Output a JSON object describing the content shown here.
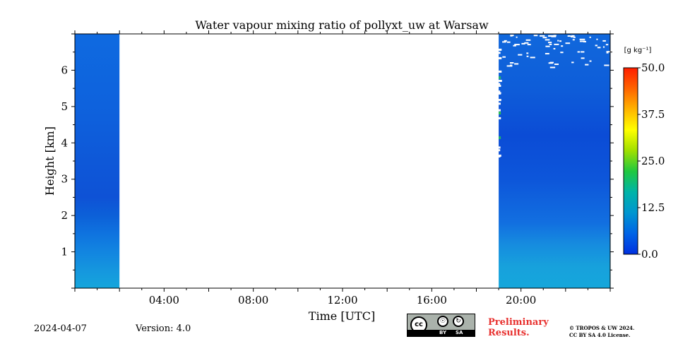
{
  "chart_data": {
    "type": "heatmap",
    "title": "Water vapour mixing ratio of pollyxt_uw at Warsaw",
    "xlabel": "Time [UTC]",
    "ylabel": "Height [km]",
    "x_range_hours": [
      0,
      24
    ],
    "y_range_km": [
      0,
      7
    ],
    "x_ticks": [
      {
        "hour": 4,
        "label": "04:00"
      },
      {
        "hour": 8,
        "label": "08:00"
      },
      {
        "hour": 12,
        "label": "12:00"
      },
      {
        "hour": 16,
        "label": "16:00"
      },
      {
        "hour": 20,
        "label": "20:00"
      }
    ],
    "y_ticks": [
      {
        "km": 1,
        "label": "1"
      },
      {
        "km": 2,
        "label": "2"
      },
      {
        "km": 3,
        "label": "3"
      },
      {
        "km": 4,
        "label": "4"
      },
      {
        "km": 5,
        "label": "5"
      },
      {
        "km": 6,
        "label": "6"
      }
    ],
    "colorbar": {
      "unit_label": "[g kg⁻¹]",
      "range": [
        0,
        50
      ],
      "ticks": [
        {
          "value": 0,
          "label": "0.0"
        },
        {
          "value": 12.5,
          "label": "12.5"
        },
        {
          "value": 25,
          "label": "25.0"
        },
        {
          "value": 37.5,
          "label": "37.5"
        },
        {
          "value": 50,
          "label": "50.0"
        }
      ],
      "colormap": [
        "#0030e0",
        "#0064e6",
        "#0096d0",
        "#00b4a8",
        "#20c840",
        "#a0e000",
        "#ffff00",
        "#ffb400",
        "#ff6400",
        "#ff1e00"
      ]
    },
    "data_segments": [
      {
        "start_hour": 0,
        "end_hour": 2,
        "profile": [
          {
            "km": 0.0,
            "color": "#15a6dc"
          },
          {
            "km": 0.5,
            "color": "#1596de"
          },
          {
            "km": 1.0,
            "color": "#1285e0"
          },
          {
            "km": 1.5,
            "color": "#0f73df"
          },
          {
            "km": 2.0,
            "color": "#0c60d8"
          },
          {
            "km": 2.5,
            "color": "#0e52d6"
          },
          {
            "km": 3.5,
            "color": "#0e58d8"
          },
          {
            "km": 5.0,
            "color": "#0e62dd"
          },
          {
            "km": 7.0,
            "color": "#0f6ae0"
          }
        ]
      },
      {
        "start_hour": 19,
        "end_hour": 24,
        "profile": [
          {
            "km": 0.0,
            "color": "#16a7db"
          },
          {
            "km": 0.6,
            "color": "#17a1dc"
          },
          {
            "km": 1.2,
            "color": "#168cdf"
          },
          {
            "km": 1.8,
            "color": "#126fe0"
          },
          {
            "km": 3.0,
            "color": "#0d56da"
          },
          {
            "km": 4.2,
            "color": "#0b4cd6"
          },
          {
            "km": 5.5,
            "color": "#0e5dd9"
          },
          {
            "km": 7.0,
            "color": "#1168dc"
          }
        ]
      }
    ]
  },
  "footer": {
    "date": "2024-04-07",
    "version": "Version: 4.0",
    "license_badge": {
      "icon": "cc-by-sa-icon",
      "by": "BY",
      "sa": "SA",
      "cc": "cc"
    },
    "preliminary": [
      "Preliminary",
      "Results."
    ],
    "copyright": [
      "© TROPOS & UW 2024.",
      "CC BY SA 4.0 License."
    ]
  }
}
